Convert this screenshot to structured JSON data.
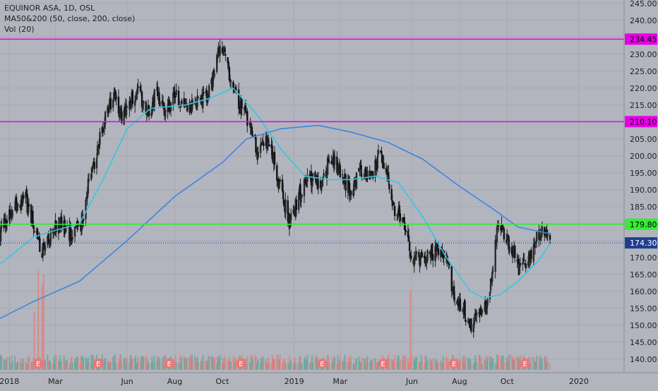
{
  "legend": {
    "symbol_line": "EQUINOR ASA, 1D, OSL",
    "ma_line": "MA50&200 (50, close, 200, close)",
    "vol_line": "Vol (20)"
  },
  "chart_data": {
    "type": "candlestick",
    "symbol": "EQUINOR ASA",
    "interval": "1D",
    "exchange": "OSL",
    "x_range": [
      "2017-12-20",
      "2020-02-28"
    ],
    "ylim": [
      136,
      246
    ],
    "y_ticks": [
      140,
      145,
      150,
      155,
      160,
      165,
      170,
      175,
      180,
      185,
      190,
      195,
      200,
      205,
      210,
      215,
      220,
      225,
      230,
      235,
      240,
      245
    ],
    "x_ticks": [
      {
        "date": "2018-01-01",
        "label": "2018"
      },
      {
        "date": "2018-03-01",
        "label": "Mar"
      },
      {
        "date": "2018-06-01",
        "label": "Jun"
      },
      {
        "date": "2018-08-01",
        "label": "Aug"
      },
      {
        "date": "2018-10-01",
        "label": "Oct"
      },
      {
        "date": "2019-01-01",
        "label": "2019"
      },
      {
        "date": "2019-03-01",
        "label": "Mar"
      },
      {
        "date": "2019-06-01",
        "label": "Jun"
      },
      {
        "date": "2019-08-01",
        "label": "Aug"
      },
      {
        "date": "2019-10-01",
        "label": "Oct"
      },
      {
        "date": "2020-01-01",
        "label": "2020"
      }
    ],
    "price_path": [
      [
        "2017-12-20",
        177
      ],
      [
        "2018-01-08",
        185
      ],
      [
        "2018-01-22",
        187
      ],
      [
        "2018-02-05",
        176
      ],
      [
        "2018-02-12",
        172
      ],
      [
        "2018-02-26",
        178
      ],
      [
        "2018-03-08",
        180
      ],
      [
        "2018-03-19",
        177
      ],
      [
        "2018-04-02",
        179
      ],
      [
        "2018-04-13",
        192
      ],
      [
        "2018-04-25",
        203
      ],
      [
        "2018-05-03",
        210
      ],
      [
        "2018-05-16",
        220
      ],
      [
        "2018-05-25",
        210
      ],
      [
        "2018-06-05",
        216
      ],
      [
        "2018-06-14",
        220
      ],
      [
        "2018-06-27",
        212
      ],
      [
        "2018-07-09",
        219
      ],
      [
        "2018-07-20",
        213
      ],
      [
        "2018-08-03",
        218
      ],
      [
        "2018-08-16",
        214
      ],
      [
        "2018-08-29",
        216
      ],
      [
        "2018-09-12",
        218
      ],
      [
        "2018-09-21",
        224
      ],
      [
        "2018-09-26",
        232
      ],
      [
        "2018-10-05",
        230
      ],
      [
        "2018-10-12",
        222
      ],
      [
        "2018-10-24",
        215
      ],
      [
        "2018-11-05",
        210
      ],
      [
        "2018-11-16",
        200
      ],
      [
        "2018-11-26",
        205
      ],
      [
        "2018-12-05",
        200
      ],
      [
        "2018-12-14",
        190
      ],
      [
        "2018-12-27",
        180
      ],
      [
        "2019-01-10",
        190
      ],
      [
        "2019-01-22",
        193
      ],
      [
        "2019-02-04",
        192
      ],
      [
        "2019-02-18",
        200
      ],
      [
        "2019-03-01",
        195
      ],
      [
        "2019-03-13",
        190
      ],
      [
        "2019-03-26",
        195
      ],
      [
        "2019-04-08",
        193
      ],
      [
        "2019-04-22",
        201
      ],
      [
        "2019-04-30",
        196
      ],
      [
        "2019-05-09",
        185
      ],
      [
        "2019-05-22",
        180
      ],
      [
        "2019-05-30",
        170
      ],
      [
        "2019-06-10",
        169
      ],
      [
        "2019-06-24",
        171
      ],
      [
        "2019-07-05",
        172
      ],
      [
        "2019-07-15",
        170
      ],
      [
        "2019-07-24",
        160
      ],
      [
        "2019-08-05",
        155
      ],
      [
        "2019-08-16",
        150
      ],
      [
        "2019-08-26",
        152
      ],
      [
        "2019-09-05",
        156
      ],
      [
        "2019-09-12",
        165
      ],
      [
        "2019-09-18",
        177
      ],
      [
        "2019-09-26",
        178
      ],
      [
        "2019-10-08",
        172
      ],
      [
        "2019-10-18",
        166
      ],
      [
        "2019-10-30",
        170
      ],
      [
        "2019-11-08",
        176
      ],
      [
        "2019-11-20",
        178
      ],
      [
        "2019-11-25",
        174.3
      ]
    ],
    "ma50_path": [
      [
        "2017-12-20",
        168
      ],
      [
        "2018-02-01",
        176
      ],
      [
        "2018-03-01",
        178
      ],
      [
        "2018-04-01",
        180
      ],
      [
        "2018-05-01",
        193
      ],
      [
        "2018-06-01",
        208
      ],
      [
        "2018-07-01",
        214
      ],
      [
        "2018-08-15",
        215
      ],
      [
        "2018-09-15",
        217
      ],
      [
        "2018-10-15",
        220
      ],
      [
        "2018-11-15",
        212
      ],
      [
        "2018-12-15",
        202
      ],
      [
        "2019-01-15",
        194
      ],
      [
        "2019-02-15",
        193
      ],
      [
        "2019-03-15",
        193
      ],
      [
        "2019-04-15",
        194
      ],
      [
        "2019-05-15",
        192
      ],
      [
        "2019-06-15",
        182
      ],
      [
        "2019-07-15",
        170
      ],
      [
        "2019-08-15",
        160
      ],
      [
        "2019-09-01",
        158
      ],
      [
        "2019-09-22",
        159
      ],
      [
        "2019-10-15",
        163
      ],
      [
        "2019-11-10",
        169
      ],
      [
        "2019-11-25",
        174
      ]
    ],
    "ma200_path": [
      [
        "2017-12-20",
        152
      ],
      [
        "2018-02-01",
        157
      ],
      [
        "2018-04-01",
        163
      ],
      [
        "2018-06-01",
        175
      ],
      [
        "2018-08-01",
        188
      ],
      [
        "2018-10-01",
        198
      ],
      [
        "2018-11-01",
        205
      ],
      [
        "2018-12-15",
        208
      ],
      [
        "2019-02-01",
        209
      ],
      [
        "2019-03-15",
        207
      ],
      [
        "2019-05-01",
        204
      ],
      [
        "2019-06-15",
        199
      ],
      [
        "2019-08-01",
        191
      ],
      [
        "2019-09-15",
        184
      ],
      [
        "2019-10-15",
        179
      ],
      [
        "2019-11-25",
        177
      ]
    ],
    "horizontal_levels": [
      {
        "value": 234.45,
        "label": "234.45",
        "color": "#e600e6"
      },
      {
        "value": 210.1,
        "label": "210.10",
        "color": "#e600e6"
      },
      {
        "value": 179.8,
        "label": "179.80",
        "color": "#33ee33"
      }
    ],
    "last_price": {
      "value": 174.3,
      "label": "174.30",
      "color": "#1e3f8f"
    },
    "earnings_markers": [
      "2018-02-07",
      "2018-04-25",
      "2018-07-25",
      "2018-10-25",
      "2019-02-06",
      "2019-04-25",
      "2019-07-25",
      "2019-10-24"
    ],
    "earnings_marker_label": "E",
    "volume_spikes": [
      [
        "2018-02-02",
        0.55
      ],
      [
        "2018-02-07",
        0.95
      ],
      [
        "2018-02-12",
        0.8
      ],
      [
        "2018-02-14",
        0.9
      ],
      [
        "2018-06-15",
        0.12
      ],
      [
        "2018-09-21",
        0.12
      ],
      [
        "2019-05-30",
        0.75
      ],
      [
        "2019-09-20",
        0.14
      ]
    ],
    "colors": {
      "background": "#b2b5be",
      "up": "#1e1e1e",
      "down": "#1e1e1e",
      "ma50": "#36c6dc",
      "ma200": "#3d86e0",
      "vol_up": "#5fa8a0",
      "vol_down": "#e27f7a"
    }
  }
}
